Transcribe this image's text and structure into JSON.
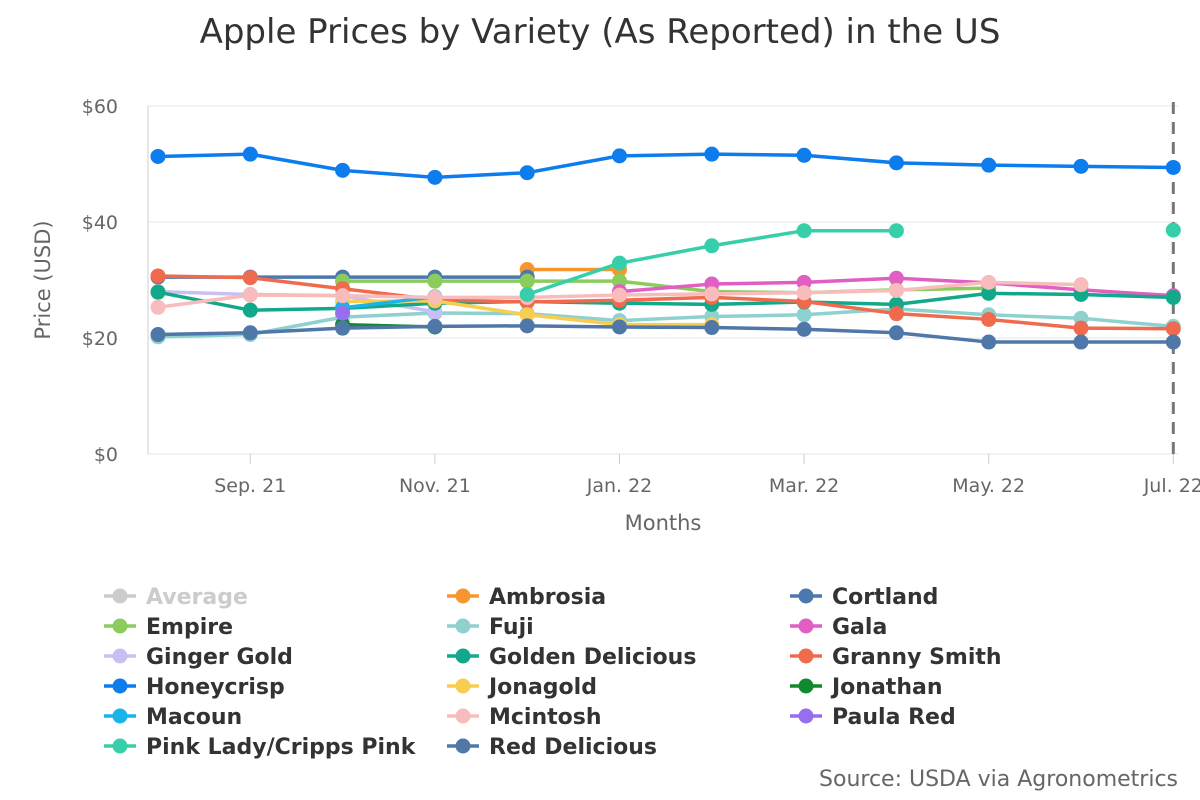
{
  "chart_data": {
    "type": "line",
    "title": "Apple Prices by Variety (As Reported) in the US",
    "xlabel": "Months",
    "ylabel": "Price (USD)",
    "y_tick_labels": [
      "$0",
      "$20",
      "$40",
      "$60"
    ],
    "y_ticks": [
      0,
      20,
      40,
      60
    ],
    "ylim": [
      0,
      60
    ],
    "x": [
      "Aug. 21",
      "Sep. 21",
      "Oct. 21",
      "Nov. 21",
      "Dec. 21",
      "Jan. 22",
      "Feb. 22",
      "Mar. 22",
      "Apr. 22",
      "May. 22",
      "Jun. 22",
      "Jul. 22"
    ],
    "x_tick_labels": [
      "Sep. 21",
      "Nov. 21",
      "Jan. 22",
      "Mar. 22",
      "May. 22",
      "Jul. 22"
    ],
    "grid": "horizontal",
    "legend_position": "bottom",
    "source": "Source: USDA via Agronometrics",
    "series": [
      {
        "name": "Average",
        "color": "#cccccc",
        "hidden": true,
        "values": [
          null,
          null,
          null,
          null,
          null,
          null,
          null,
          null,
          null,
          null,
          null,
          null
        ]
      },
      {
        "name": "Ambrosia",
        "color": "#f7962e",
        "values": [
          null,
          null,
          null,
          null,
          31.8,
          31.8,
          null,
          null,
          null,
          null,
          null,
          null
        ]
      },
      {
        "name": "Cortland",
        "color": "#4c79ad",
        "values": [
          30.5,
          30.5,
          30.5,
          30.5,
          30.5,
          null,
          null,
          null,
          null,
          null,
          null,
          null
        ]
      },
      {
        "name": "Empire",
        "color": "#8bcc5c",
        "values": [
          null,
          null,
          29.8,
          29.8,
          29.8,
          29.8,
          28.0,
          27.8,
          28.3,
          28.6,
          null,
          null
        ]
      },
      {
        "name": "Fuji",
        "color": "#8ed1cf",
        "values": [
          20.2,
          20.6,
          23.6,
          24.3,
          24.2,
          23.0,
          23.7,
          24.0,
          25.0,
          24.0,
          23.4,
          22.0
        ]
      },
      {
        "name": "Gala",
        "color": "#e15ec2",
        "values": [
          null,
          null,
          null,
          null,
          null,
          28.0,
          29.3,
          29.6,
          30.3,
          29.5,
          28.3,
          27.3
        ]
      },
      {
        "name": "Ginger Gold",
        "color": "#c9bff3",
        "values": [
          28.0,
          27.5,
          27.3,
          24.5,
          null,
          null,
          null,
          null,
          null,
          null,
          null,
          null
        ]
      },
      {
        "name": "Golden Delicious",
        "color": "#12a88a",
        "values": [
          27.9,
          24.8,
          25.1,
          26.0,
          26.3,
          26.0,
          25.8,
          26.2,
          25.8,
          27.7,
          27.5,
          27.0
        ]
      },
      {
        "name": "Granny Smith",
        "color": "#f06a4d",
        "values": [
          30.7,
          30.4,
          28.5,
          26.6,
          26.2,
          26.5,
          27.0,
          26.3,
          24.2,
          23.2,
          21.7,
          21.6
        ]
      },
      {
        "name": "Honeycrisp",
        "color": "#0d7cec",
        "values": [
          51.3,
          51.7,
          48.9,
          47.7,
          48.5,
          51.4,
          51.7,
          51.5,
          50.2,
          49.8,
          49.6,
          49.4
        ]
      },
      {
        "name": "Jonagold",
        "color": "#f9cd4f",
        "values": [
          null,
          null,
          26.3,
          26.4,
          24.0,
          22.3,
          22.3,
          null,
          null,
          null,
          null,
          null
        ]
      },
      {
        "name": "Jonathan",
        "color": "#0f8a2c",
        "values": [
          null,
          null,
          22.3,
          21.9,
          null,
          null,
          null,
          null,
          null,
          null,
          null,
          null
        ]
      },
      {
        "name": "Macoun",
        "color": "#19b4ea",
        "values": [
          null,
          null,
          25.2,
          27.1,
          null,
          null,
          null,
          null,
          null,
          null,
          null,
          null
        ]
      },
      {
        "name": "Mcintosh",
        "color": "#f9bcbc",
        "values": [
          25.3,
          27.4,
          27.3,
          27.0,
          27.0,
          27.4,
          27.6,
          27.8,
          28.2,
          29.6,
          29.2,
          null
        ]
      },
      {
        "name": "Paula Red",
        "color": "#966ef0",
        "values": [
          null,
          null,
          24.3,
          null,
          null,
          null,
          null,
          null,
          null,
          null,
          null,
          null
        ]
      },
      {
        "name": "Pink Lady/Cripps Pink",
        "color": "#37cfaa",
        "values": [
          null,
          null,
          null,
          null,
          27.5,
          32.9,
          35.9,
          38.5,
          38.5,
          null,
          null,
          38.6
        ]
      },
      {
        "name": "Red Delicious",
        "color": "#4f77a8",
        "values": [
          20.6,
          20.9,
          21.7,
          22.0,
          22.1,
          21.9,
          21.8,
          21.5,
          20.9,
          19.3,
          19.3,
          19.3
        ]
      }
    ]
  }
}
